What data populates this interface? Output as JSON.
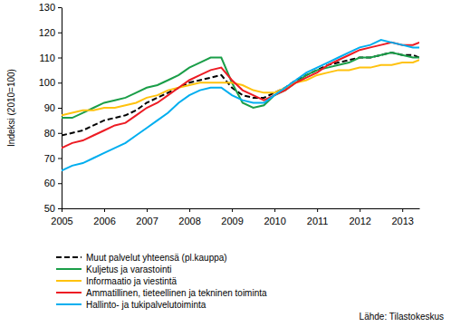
{
  "chart_data": {
    "type": "line",
    "y_label": "Indeksi (2010=100)",
    "source": "Lähde: Tilastokeskus",
    "x": [
      2005,
      2005.25,
      2005.5,
      2005.75,
      2006,
      2006.25,
      2006.5,
      2006.75,
      2007,
      2007.25,
      2007.5,
      2007.75,
      2008,
      2008.25,
      2008.5,
      2008.75,
      2009,
      2009.25,
      2009.5,
      2009.75,
      2010,
      2010.25,
      2010.5,
      2010.75,
      2011,
      2011.25,
      2011.5,
      2011.75,
      2012,
      2012.25,
      2012.5,
      2012.75,
      2013,
      2013.25,
      2013.4
    ],
    "series": [
      {
        "name": "Muut palvelut yhteensä (pl.kauppa)",
        "color": "#000000",
        "line_style": "dashed",
        "values": [
          79,
          80,
          81,
          83,
          85,
          86,
          87,
          89,
          92,
          94,
          96,
          98,
          100,
          101,
          102,
          103,
          98,
          95,
          94,
          94,
          96,
          98,
          101,
          103,
          105,
          107,
          108,
          109,
          110,
          110,
          111,
          112,
          111,
          111,
          110
        ]
      },
      {
        "name": "Kuljetus ja varastointi",
        "color": "#1a9e48",
        "line_style": "solid",
        "values": [
          86,
          86,
          88,
          90,
          92,
          93,
          94,
          96,
          98,
          99,
          101,
          103,
          106,
          108,
          110,
          110,
          100,
          92,
          90,
          91,
          95,
          97,
          100,
          103,
          105,
          106,
          107,
          108,
          110,
          110,
          111,
          112,
          111,
          110,
          110
        ]
      },
      {
        "name": "Informaatio ja viestintä",
        "color": "#ffc20e",
        "line_style": "solid",
        "values": [
          87,
          88,
          89,
          89,
          90,
          90,
          91,
          92,
          94,
          95,
          97,
          98,
          99,
          100,
          100,
          100,
          100,
          99,
          97,
          96,
          96,
          98,
          100,
          101,
          103,
          104,
          105,
          105,
          106,
          106,
          107,
          107,
          108,
          108,
          109
        ]
      },
      {
        "name": "Ammatillinen, tieteellinen ja tekninen toiminta",
        "color": "#ed1c24",
        "line_style": "solid",
        "values": [
          74,
          76,
          77,
          79,
          81,
          83,
          84,
          87,
          90,
          92,
          95,
          98,
          101,
          103,
          105,
          106,
          101,
          97,
          95,
          93,
          95,
          97,
          100,
          102,
          104,
          107,
          109,
          111,
          113,
          114,
          115,
          116,
          115,
          115,
          116
        ]
      },
      {
        "name": "Hallinto- ja tukipalvelutoiminta",
        "color": "#00aeef",
        "line_style": "solid",
        "values": [
          65,
          67,
          68,
          70,
          72,
          74,
          76,
          79,
          82,
          85,
          88,
          92,
          95,
          97,
          98,
          98,
          95,
          93,
          92,
          92,
          95,
          98,
          101,
          104,
          106,
          108,
          110,
          112,
          114,
          115,
          117,
          116,
          115,
          114,
          114
        ]
      }
    ],
    "xlim": [
      2005,
      2013.4
    ],
    "xticks": [
      2005,
      2006,
      2007,
      2008,
      2009,
      2010,
      2011,
      2012,
      2013
    ],
    "ylim": [
      50,
      130
    ],
    "yticks": [
      50,
      60,
      70,
      80,
      90,
      100,
      110,
      120,
      130
    ],
    "grid": false,
    "legend": "bottom"
  }
}
